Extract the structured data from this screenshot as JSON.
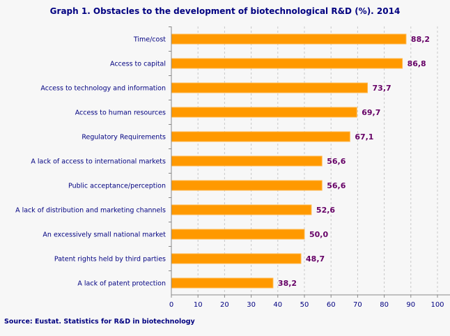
{
  "chart_data": {
    "type": "bar",
    "orientation": "horizontal",
    "title": "Graph 1. Obstacles to the development of biotechnological R&D (%). 2014",
    "source": "Source: Eustat. Statistics for R&D in biotechnology",
    "categories": [
      "Time/cost",
      "Access to capital",
      "Access to technology and information",
      "Access to human resources",
      "Regulatory Requirements",
      "A lack of access to international markets",
      "Public acceptance/perception",
      "A lack of distribution and marketing channels",
      "An excessively small national market",
      "Patent rights held by third parties",
      "A lack of patent protection"
    ],
    "values": [
      88.2,
      86.8,
      73.7,
      69.7,
      67.1,
      56.6,
      56.6,
      52.6,
      50.0,
      48.7,
      38.2
    ],
    "value_labels": [
      "88,2",
      "86,8",
      "73,7",
      "69,7",
      "67,1",
      "56,6",
      "56,6",
      "52,6",
      "50,0",
      "48,7",
      "38,2"
    ],
    "xlim": [
      0,
      100
    ],
    "xticks": [
      "0",
      "10",
      "20",
      "30",
      "40",
      "50",
      "60",
      "70",
      "80",
      "90",
      "100"
    ],
    "grid": "vertical dashed",
    "colors": {
      "bar": "#ff9900",
      "value_label": "#660066",
      "text": "#000080",
      "background": "#f7f7f7"
    }
  }
}
